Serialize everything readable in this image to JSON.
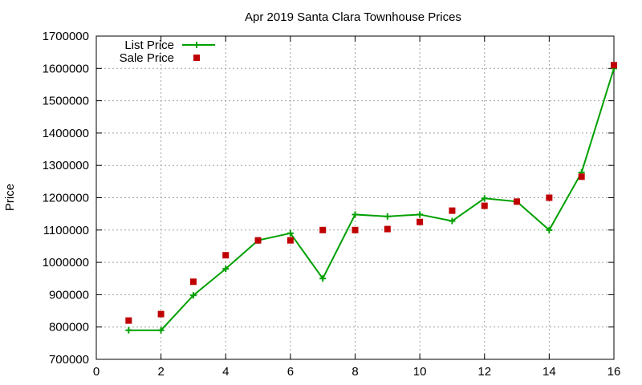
{
  "chart_data": {
    "type": "line",
    "title": "Apr 2019 Santa Clara Townhouse Prices",
    "xlabel": "",
    "ylabel": "Price",
    "xlim": [
      0,
      16
    ],
    "ylim": [
      700000,
      1700000
    ],
    "xticks": [
      0,
      2,
      4,
      6,
      8,
      10,
      12,
      14,
      16
    ],
    "yticks": [
      700000,
      800000,
      900000,
      1000000,
      1100000,
      1200000,
      1300000,
      1400000,
      1500000,
      1600000,
      1700000
    ],
    "grid": true,
    "legend_position": "top-left",
    "series": [
      {
        "name": "List Price",
        "kind": "line+cross",
        "color": "#00a000",
        "x": [
          1,
          2,
          3,
          4,
          5,
          6,
          7,
          8,
          9,
          10,
          11,
          12,
          13,
          14,
          15,
          16
        ],
        "y": [
          790000,
          790000,
          898000,
          980000,
          1068000,
          1090000,
          950000,
          1148000,
          1142000,
          1148000,
          1128000,
          1198000,
          1188000,
          1100000,
          1278000,
          1600000
        ]
      },
      {
        "name": "Sale Price",
        "kind": "square",
        "color": "#c00000",
        "x": [
          1,
          2,
          3,
          4,
          5,
          6,
          7,
          8,
          9,
          10,
          11,
          12,
          13,
          14,
          15,
          16
        ],
        "y": [
          820000,
          840000,
          940000,
          1022000,
          1068000,
          1068000,
          1100000,
          1100000,
          1103000,
          1125000,
          1160000,
          1175000,
          1188000,
          1200000,
          1265000,
          1610000
        ]
      }
    ]
  }
}
